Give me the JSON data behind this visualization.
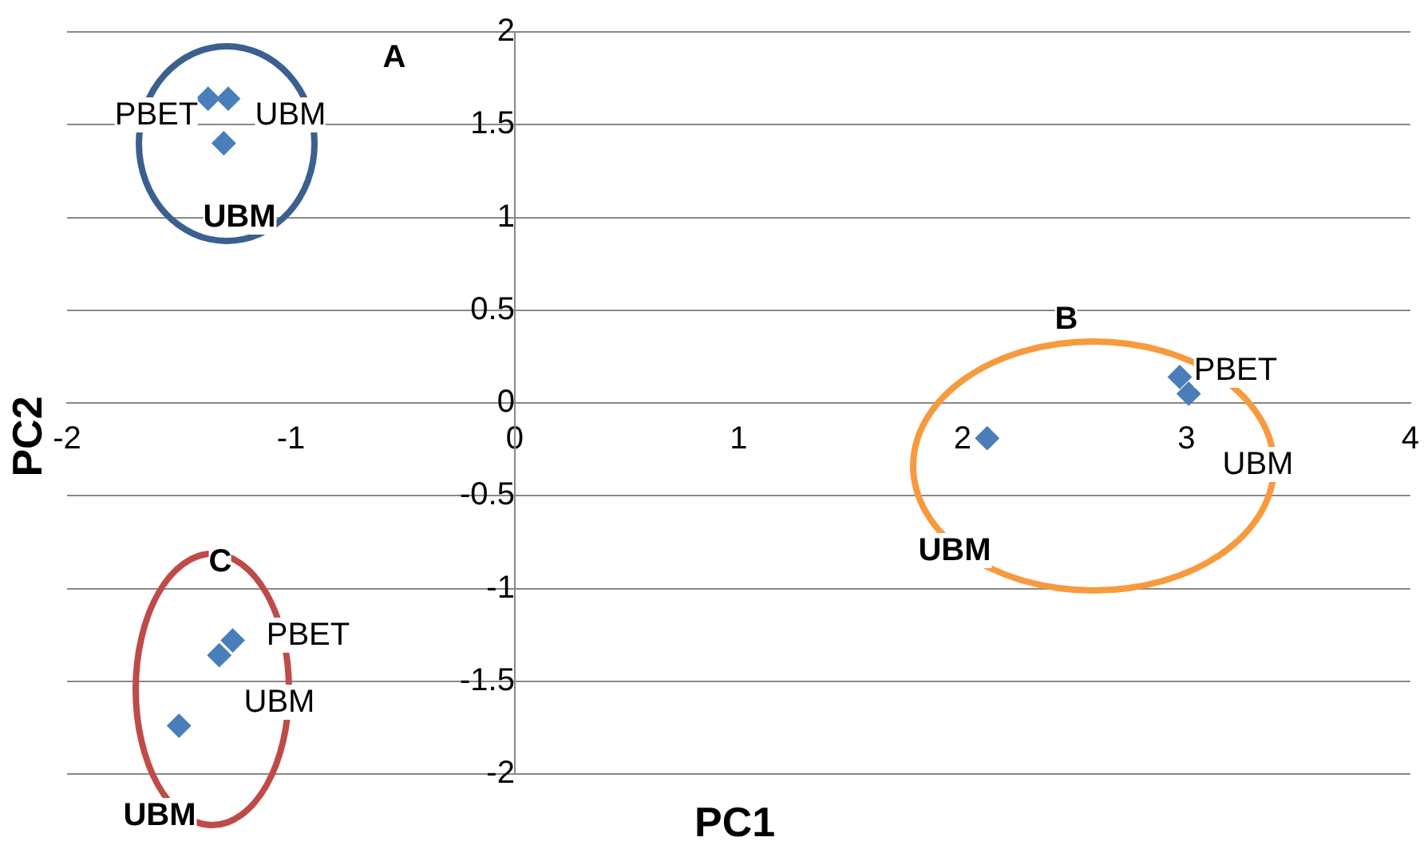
{
  "chart_data": {
    "type": "scatter",
    "xlabel": "PC1",
    "ylabel": "PC2",
    "xlim": [
      -2,
      4
    ],
    "xticks": [
      -2,
      -1,
      0,
      1,
      2,
      3,
      4
    ],
    "ylim": [
      -2,
      2
    ],
    "yticks": [
      -2,
      -1.5,
      -1,
      -0.5,
      0,
      0.5,
      1,
      1.5,
      2
    ],
    "grid": "y",
    "legend": false,
    "marker": "diamond",
    "series": [
      {
        "color": "#4a7ebb",
        "x": [
          -1.37,
          -1.28,
          -1.3,
          2.97,
          3.01,
          2.11,
          -1.26,
          -1.32,
          -1.5
        ],
        "values": [
          1.64,
          1.64,
          1.4,
          0.14,
          0.05,
          -0.19,
          -1.28,
          -1.36,
          -1.74
        ]
      }
    ],
    "annotations": [
      "A",
      "PBET",
      "UBM",
      "UBM",
      "B",
      "PBET",
      "UBM",
      "UBM",
      "C",
      "PBET",
      "UBM",
      "UBM"
    ]
  }
}
